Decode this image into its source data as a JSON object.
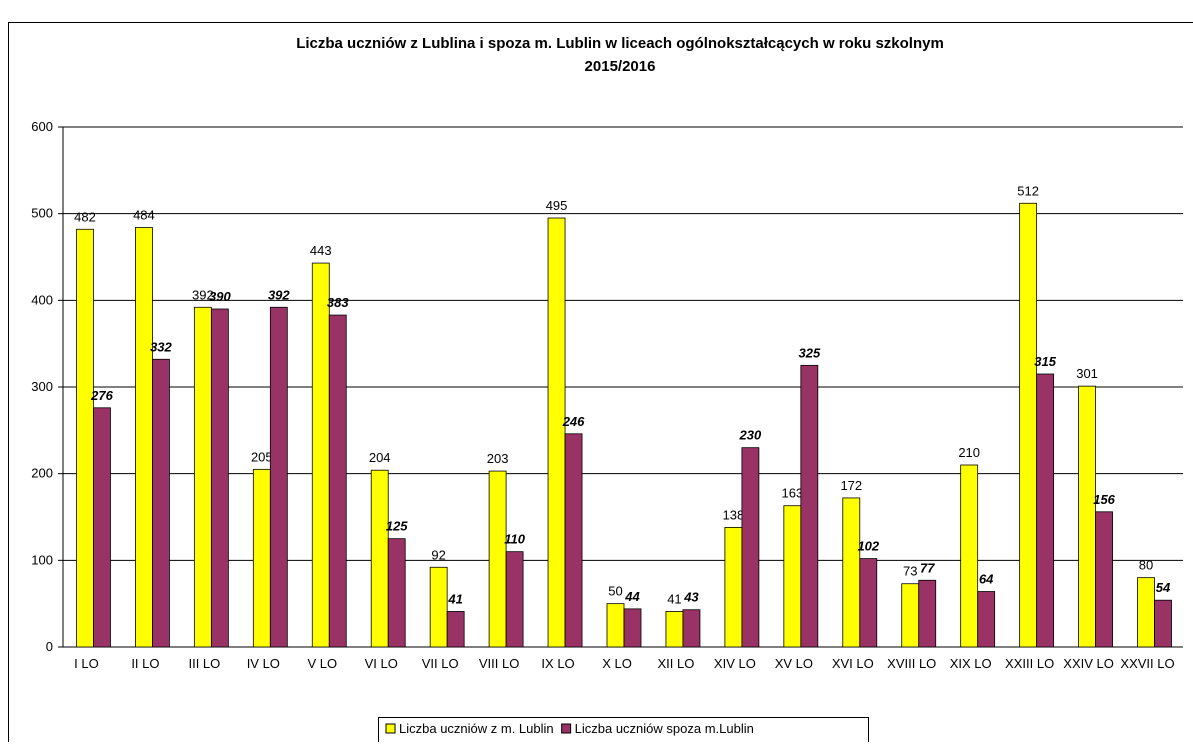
{
  "chart_data": {
    "type": "bar",
    "title": [
      "Liczba uczniów z Lublina i spoza m. Lublin w liceach ogólnokształcących w roku szkolnym",
      "2015/2016"
    ],
    "categories": [
      "I LO",
      "II LO",
      "III LO",
      "IV LO",
      "V LO",
      "VI LO",
      "VII LO",
      "VIII LO",
      "IX LO",
      "X LO",
      "XII LO",
      "XIV LO",
      "XV LO",
      "XVI LO",
      "XVIII LO",
      "XIX LO",
      "XXIII LO",
      "XXIV LO",
      "XXVII LO"
    ],
    "series": [
      {
        "name": "Liczba uczniów z m. Lublin",
        "color": "#ffff00",
        "values": [
          482,
          484,
          392,
          205,
          443,
          204,
          92,
          203,
          495,
          50,
          41,
          138,
          163,
          172,
          73,
          210,
          512,
          301,
          80
        ]
      },
      {
        "name": "Liczba uczniów spoza m.Lublin",
        "color": "#993366",
        "values": [
          276,
          332,
          390,
          392,
          383,
          125,
          41,
          110,
          246,
          44,
          43,
          230,
          325,
          102,
          77,
          64,
          315,
          156,
          54
        ]
      }
    ],
    "ylim": [
      0,
      600
    ],
    "yticks": [
      0,
      100,
      200,
      300,
      400,
      500,
      600
    ],
    "grid": true,
    "legend": "bottom"
  }
}
